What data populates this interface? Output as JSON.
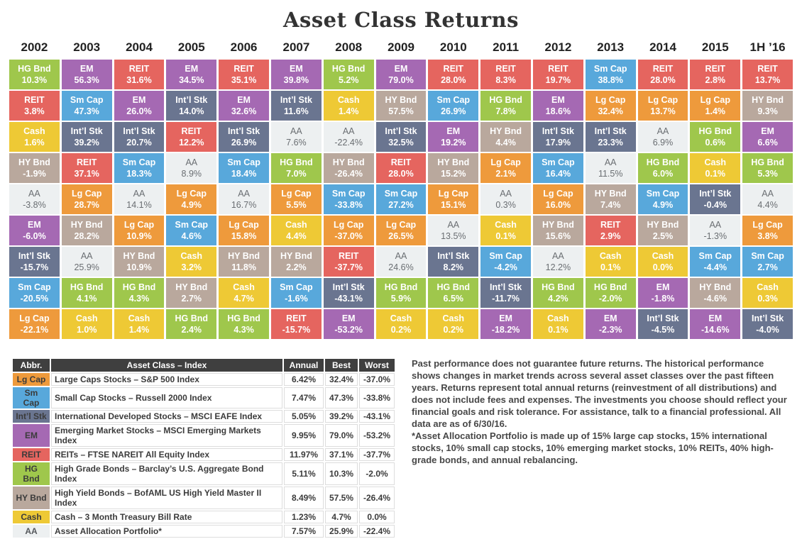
{
  "title": "Asset Class Returns",
  "palette": {
    "Lg Cap": {
      "bg": "#EE9A3C",
      "fg": "#FFFFFF"
    },
    "Sm Cap": {
      "bg": "#58A8DB",
      "fg": "#FFFFFF"
    },
    "Int’l Stk": {
      "bg": "#6A7590",
      "fg": "#FFFFFF"
    },
    "EM": {
      "bg": "#A569B3",
      "fg": "#FFFFFF"
    },
    "REIT": {
      "bg": "#E5655F",
      "fg": "#FFFFFF"
    },
    "HG Bnd": {
      "bg": "#9FC74C",
      "fg": "#FFFFFF"
    },
    "HY Bnd": {
      "bg": "#B9A89D",
      "fg": "#FFFFFF"
    },
    "Cash": {
      "bg": "#EEC935",
      "fg": "#FFFFFF"
    },
    "AA": {
      "bg": "#EDF0F1",
      "fg": "#6A6E72"
    }
  },
  "chart_data": {
    "type": "table",
    "title": "Asset Class Returns",
    "columns": [
      "2002",
      "2003",
      "2004",
      "2005",
      "2006",
      "2007",
      "2008",
      "2009",
      "2010",
      "2011",
      "2012",
      "2013",
      "2014",
      "2015",
      "1H ’16"
    ],
    "cells": [
      [
        {
          "asset": "HG Bnd",
          "value": "10.3%"
        },
        {
          "asset": "REIT",
          "value": "3.8%"
        },
        {
          "asset": "Cash",
          "value": "1.6%"
        },
        {
          "asset": "HY Bnd",
          "value": "-1.9%"
        },
        {
          "asset": "AA",
          "value": "-3.8%"
        },
        {
          "asset": "EM",
          "value": "-6.0%"
        },
        {
          "asset": "Int’l Stk",
          "value": "-15.7%"
        },
        {
          "asset": "Sm Cap",
          "value": "-20.5%"
        },
        {
          "asset": "Lg Cap",
          "value": "-22.1%"
        }
      ],
      [
        {
          "asset": "EM",
          "value": "56.3%"
        },
        {
          "asset": "Sm Cap",
          "value": "47.3%"
        },
        {
          "asset": "Int’l Stk",
          "value": "39.2%"
        },
        {
          "asset": "REIT",
          "value": "37.1%"
        },
        {
          "asset": "Lg Cap",
          "value": "28.7%"
        },
        {
          "asset": "HY Bnd",
          "value": "28.2%"
        },
        {
          "asset": "AA",
          "value": "25.9%"
        },
        {
          "asset": "HG Bnd",
          "value": "4.1%"
        },
        {
          "asset": "Cash",
          "value": "1.0%"
        }
      ],
      [
        {
          "asset": "REIT",
          "value": "31.6%"
        },
        {
          "asset": "EM",
          "value": "26.0%"
        },
        {
          "asset": "Int’l Stk",
          "value": "20.7%"
        },
        {
          "asset": "Sm Cap",
          "value": "18.3%"
        },
        {
          "asset": "AA",
          "value": "14.1%"
        },
        {
          "asset": "Lg Cap",
          "value": "10.9%"
        },
        {
          "asset": "HY Bnd",
          "value": "10.9%"
        },
        {
          "asset": "HG Bnd",
          "value": "4.3%"
        },
        {
          "asset": "Cash",
          "value": "1.4%"
        }
      ],
      [
        {
          "asset": "EM",
          "value": "34.5%"
        },
        {
          "asset": "Int’l Stk",
          "value": "14.0%"
        },
        {
          "asset": "REIT",
          "value": "12.2%"
        },
        {
          "asset": "AA",
          "value": "8.9%"
        },
        {
          "asset": "Lg Cap",
          "value": "4.9%"
        },
        {
          "asset": "Sm Cap",
          "value": "4.6%"
        },
        {
          "asset": "Cash",
          "value": "3.2%"
        },
        {
          "asset": "HY Bnd",
          "value": "2.7%"
        },
        {
          "asset": "HG Bnd",
          "value": "2.4%"
        }
      ],
      [
        {
          "asset": "REIT",
          "value": "35.1%"
        },
        {
          "asset": "EM",
          "value": "32.6%"
        },
        {
          "asset": "Int’l Stk",
          "value": "26.9%"
        },
        {
          "asset": "Sm Cap",
          "value": "18.4%"
        },
        {
          "asset": "AA",
          "value": "16.7%"
        },
        {
          "asset": "Lg Cap",
          "value": "15.8%"
        },
        {
          "asset": "HY Bnd",
          "value": "11.8%"
        },
        {
          "asset": "Cash",
          "value": "4.7%"
        },
        {
          "asset": "HG Bnd",
          "value": "4.3%"
        }
      ],
      [
        {
          "asset": "EM",
          "value": "39.8%"
        },
        {
          "asset": "Int’l Stk",
          "value": "11.6%"
        },
        {
          "asset": "AA",
          "value": "7.6%"
        },
        {
          "asset": "HG Bnd",
          "value": "7.0%"
        },
        {
          "asset": "Lg Cap",
          "value": "5.5%"
        },
        {
          "asset": "Cash",
          "value": "4.4%"
        },
        {
          "asset": "HY Bnd",
          "value": "2.2%"
        },
        {
          "asset": "Sm Cap",
          "value": "-1.6%"
        },
        {
          "asset": "REIT",
          "value": "-15.7%"
        }
      ],
      [
        {
          "asset": "HG Bnd",
          "value": "5.2%"
        },
        {
          "asset": "Cash",
          "value": "1.4%"
        },
        {
          "asset": "AA",
          "value": "-22.4%"
        },
        {
          "asset": "HY Bnd",
          "value": "-26.4%"
        },
        {
          "asset": "Sm Cap",
          "value": "-33.8%"
        },
        {
          "asset": "Lg Cap",
          "value": "-37.0%"
        },
        {
          "asset": "REIT",
          "value": "-37.7%"
        },
        {
          "asset": "Int’l Stk",
          "value": "-43.1%"
        },
        {
          "asset": "EM",
          "value": "-53.2%"
        }
      ],
      [
        {
          "asset": "EM",
          "value": "79.0%"
        },
        {
          "asset": "HY Bnd",
          "value": "57.5%"
        },
        {
          "asset": "Int’l Stk",
          "value": "32.5%"
        },
        {
          "asset": "REIT",
          "value": "28.0%"
        },
        {
          "asset": "Sm Cap",
          "value": "27.2%"
        },
        {
          "asset": "Lg Cap",
          "value": "26.5%"
        },
        {
          "asset": "AA",
          "value": "24.6%"
        },
        {
          "asset": "HG Bnd",
          "value": "5.9%"
        },
        {
          "asset": "Cash",
          "value": "0.2%"
        }
      ],
      [
        {
          "asset": "REIT",
          "value": "28.0%"
        },
        {
          "asset": "Sm Cap",
          "value": "26.9%"
        },
        {
          "asset": "EM",
          "value": "19.2%"
        },
        {
          "asset": "HY Bnd",
          "value": "15.2%"
        },
        {
          "asset": "Lg Cap",
          "value": "15.1%"
        },
        {
          "asset": "AA",
          "value": "13.5%"
        },
        {
          "asset": "Int’l Stk",
          "value": "8.2%"
        },
        {
          "asset": "HG Bnd",
          "value": "6.5%"
        },
        {
          "asset": "Cash",
          "value": "0.2%"
        }
      ],
      [
        {
          "asset": "REIT",
          "value": "8.3%"
        },
        {
          "asset": "HG Bnd",
          "value": "7.8%"
        },
        {
          "asset": "HY Bnd",
          "value": "4.4%"
        },
        {
          "asset": "Lg Cap",
          "value": "2.1%"
        },
        {
          "asset": "AA",
          "value": "0.3%"
        },
        {
          "asset": "Cash",
          "value": "0.1%"
        },
        {
          "asset": "Sm Cap",
          "value": "-4.2%"
        },
        {
          "asset": "Int’l Stk",
          "value": "-11.7%"
        },
        {
          "asset": "EM",
          "value": "-18.2%"
        }
      ],
      [
        {
          "asset": "REIT",
          "value": "19.7%"
        },
        {
          "asset": "EM",
          "value": "18.6%"
        },
        {
          "asset": "Int’l Stk",
          "value": "17.9%"
        },
        {
          "asset": "Sm Cap",
          "value": "16.4%"
        },
        {
          "asset": "Lg Cap",
          "value": "16.0%"
        },
        {
          "asset": "HY Bnd",
          "value": "15.6%"
        },
        {
          "asset": "AA",
          "value": "12.2%"
        },
        {
          "asset": "HG Bnd",
          "value": "4.2%"
        },
        {
          "asset": "Cash",
          "value": "0.1%"
        }
      ],
      [
        {
          "asset": "Sm Cap",
          "value": "38.8%"
        },
        {
          "asset": "Lg Cap",
          "value": "32.4%"
        },
        {
          "asset": "Int’l Stk",
          "value": "23.3%"
        },
        {
          "asset": "AA",
          "value": "11.5%"
        },
        {
          "asset": "HY Bnd",
          "value": "7.4%"
        },
        {
          "asset": "REIT",
          "value": "2.9%"
        },
        {
          "asset": "Cash",
          "value": "0.1%"
        },
        {
          "asset": "HG Bnd",
          "value": "-2.0%"
        },
        {
          "asset": "EM",
          "value": "-2.3%"
        }
      ],
      [
        {
          "asset": "REIT",
          "value": "28.0%"
        },
        {
          "asset": "Lg Cap",
          "value": "13.7%"
        },
        {
          "asset": "AA",
          "value": "6.9%"
        },
        {
          "asset": "HG Bnd",
          "value": "6.0%"
        },
        {
          "asset": "Sm Cap",
          "value": "4.9%"
        },
        {
          "asset": "HY Bnd",
          "value": "2.5%"
        },
        {
          "asset": "Cash",
          "value": "0.0%"
        },
        {
          "asset": "EM",
          "value": "-1.8%"
        },
        {
          "asset": "Int’l Stk",
          "value": "-4.5%"
        }
      ],
      [
        {
          "asset": "REIT",
          "value": "2.8%"
        },
        {
          "asset": "Lg Cap",
          "value": "1.4%"
        },
        {
          "asset": "HG Bnd",
          "value": "0.6%"
        },
        {
          "asset": "Cash",
          "value": "0.1%"
        },
        {
          "asset": "Int’l Stk",
          "value": "-0.4%"
        },
        {
          "asset": "AA",
          "value": "-1.3%"
        },
        {
          "asset": "Sm Cap",
          "value": "-4.4%"
        },
        {
          "asset": "HY Bnd",
          "value": "-4.6%"
        },
        {
          "asset": "EM",
          "value": "-14.6%"
        }
      ],
      [
        {
          "asset": "REIT",
          "value": "13.7%"
        },
        {
          "asset": "HY Bnd",
          "value": "9.3%"
        },
        {
          "asset": "EM",
          "value": "6.6%"
        },
        {
          "asset": "HG Bnd",
          "value": "5.3%"
        },
        {
          "asset": "AA",
          "value": "4.4%"
        },
        {
          "asset": "Lg Cap",
          "value": "3.8%"
        },
        {
          "asset": "Sm Cap",
          "value": "2.7%"
        },
        {
          "asset": "Cash",
          "value": "0.3%"
        },
        {
          "asset": "Int’l Stk",
          "value": "-4.0%"
        }
      ]
    ]
  },
  "legend": {
    "headers": [
      "Abbr.",
      "Asset Class – Index",
      "Annual",
      "Best",
      "Worst"
    ],
    "rows": [
      {
        "abbr": "Lg Cap",
        "name": "Large Caps Stocks – S&P 500 Index",
        "annual": "6.42%",
        "best": "32.4%",
        "worst": "-37.0%"
      },
      {
        "abbr": "Sm Cap",
        "name": "Small Cap Stocks – Russell 2000 Index",
        "annual": "7.47%",
        "best": "47.3%",
        "worst": "-33.8%"
      },
      {
        "abbr": "Int’l Stk",
        "name": "International Developed Stocks – MSCI EAFE Index",
        "annual": "5.05%",
        "best": "39.2%",
        "worst": "-43.1%"
      },
      {
        "abbr": "EM",
        "name": "Emerging Market Stocks – MSCI Emerging Markets Index",
        "annual": "9.95%",
        "best": "79.0%",
        "worst": "-53.2%"
      },
      {
        "abbr": "REIT",
        "name": "REITs – FTSE NAREIT All Equity Index",
        "annual": "11.97%",
        "best": "37.1%",
        "worst": "-37.7%"
      },
      {
        "abbr": "HG Bnd",
        "name": "High Grade Bonds – Barclay’s U.S. Aggregate Bond Index",
        "annual": "5.11%",
        "best": "10.3%",
        "worst": "-2.0%"
      },
      {
        "abbr": "HY Bnd",
        "name": "High Yield Bonds – BofAML US High Yield Master II Index",
        "annual": "8.49%",
        "best": "57.5%",
        "worst": "-26.4%"
      },
      {
        "abbr": "Cash",
        "name": "Cash – 3 Month Treasury Bill Rate",
        "annual": "1.23%",
        "best": "4.7%",
        "worst": "0.0%"
      },
      {
        "abbr": "AA",
        "name": "Asset Allocation Portfolio*",
        "annual": "7.57%",
        "best": "25.9%",
        "worst": "-22.4%"
      }
    ]
  },
  "disclaimer": {
    "p1": "Past performance does not guarantee future returns. The historical performance shows changes in market trends across several asset classes over the past fifteen years. Returns represent total annual returns (reinvestment of all distributions) and does not include fees and expenses. The investments you choose should reflect your financial goals and risk tolerance. For assistance, talk to a financial professional. All data are as of 6/30/16.",
    "p2": "*Asset Allocation Portfolio is made up of 15% large cap stocks, 15% international stocks, 10% small cap stocks, 10% emerging market stocks, 10% REITs, 40% high-grade bonds, and annual rebalancing."
  }
}
